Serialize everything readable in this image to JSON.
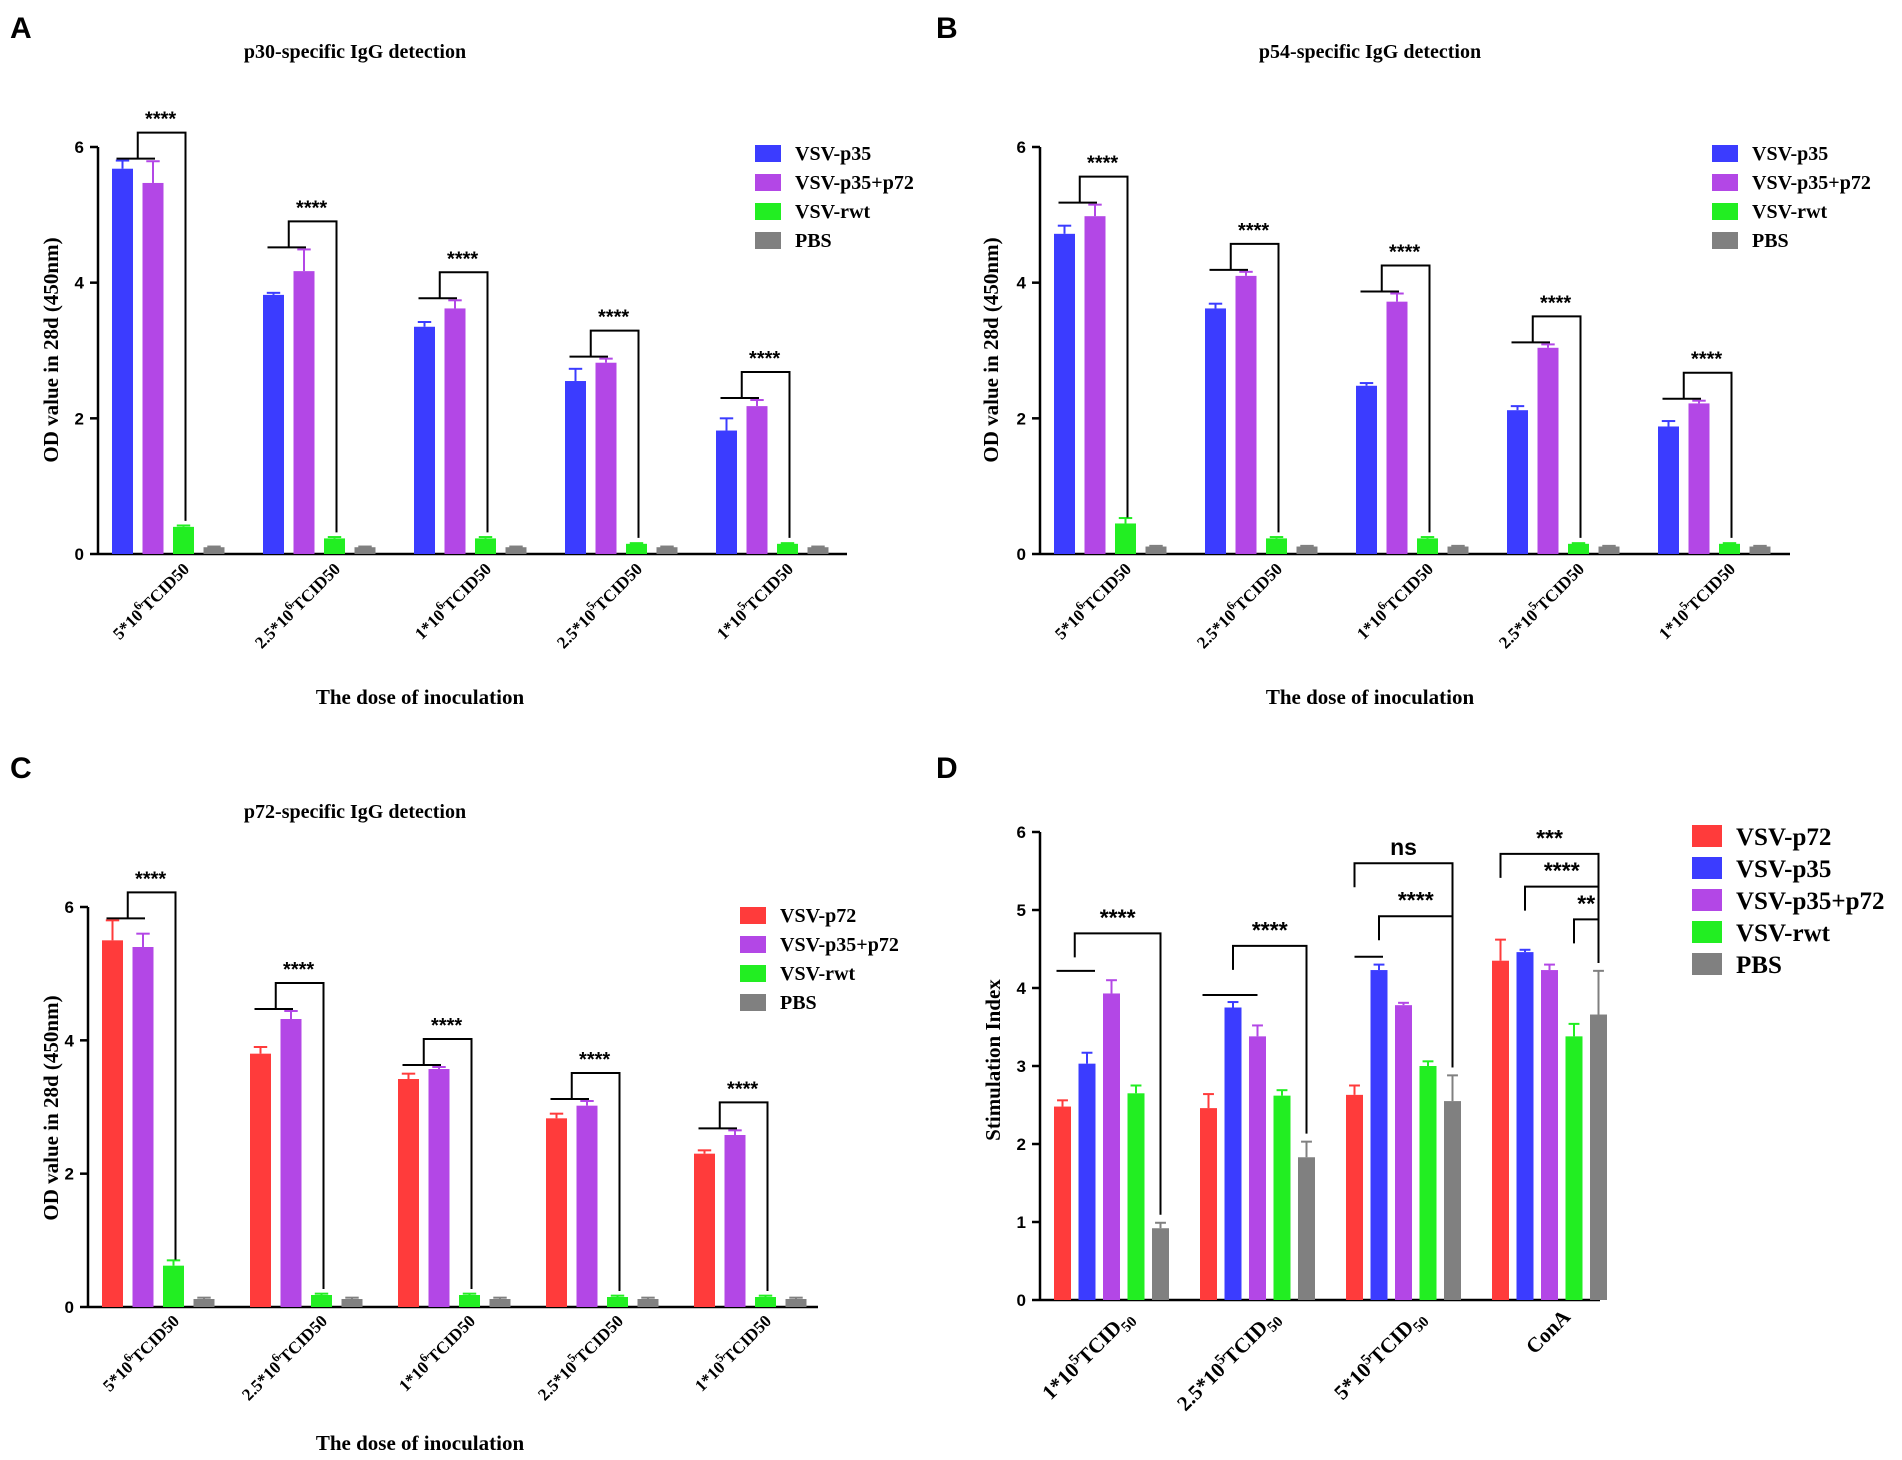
{
  "colors": {
    "VSV-p35": "#3b3cff",
    "VSV-p35+p72": "#b347e6",
    "VSV-rwt": "#22ee22",
    "PBS": "#808080",
    "VSV-p72": "#ff3b3b"
  },
  "chart_data": [
    {
      "letter": "A",
      "type": "bar",
      "title": "p30-specific IgG detection",
      "xlabel": "The dose of inoculation",
      "ylabel": "OD value in 28d (450nm)",
      "ylim": [
        0,
        6
      ],
      "yticks": [
        "0",
        "2",
        "4",
        "6"
      ],
      "legend_position": "top-right",
      "categories": [
        {
          "base": "5*10",
          "sup": "6",
          "rest": "TCID50"
        },
        {
          "base": "2.5*10",
          "sup": "6",
          "rest": "TCID50"
        },
        {
          "base": "1*10",
          "sup": "6",
          "rest": "TCID50"
        },
        {
          "base": "2.5*10",
          "sup": "5",
          "rest": "TCID50"
        },
        {
          "base": "1*10",
          "sup": "5",
          "rest": "TCID50"
        }
      ],
      "series": [
        {
          "name": "VSV-p35",
          "values": [
            5.68,
            3.82,
            3.35,
            2.55,
            1.82
          ],
          "errors": [
            0.12,
            0.03,
            0.07,
            0.18,
            0.18
          ]
        },
        {
          "name": "VSV-p35+p72",
          "values": [
            5.47,
            4.17,
            3.62,
            2.82,
            2.18
          ],
          "errors": [
            0.32,
            0.32,
            0.12,
            0.06,
            0.09
          ]
        },
        {
          "name": "VSV-rwt",
          "values": [
            0.4,
            0.23,
            0.23,
            0.15,
            0.15
          ],
          "errors": [
            0.02,
            0.02,
            0.02,
            0.01,
            0.01
          ]
        },
        {
          "name": "PBS",
          "values": [
            0.1,
            0.1,
            0.1,
            0.1,
            0.1
          ],
          "errors": [
            0.01,
            0.01,
            0.01,
            0.01,
            0.01
          ]
        }
      ],
      "significance": [
        {
          "category": 0,
          "label": "****"
        },
        {
          "category": 1,
          "label": "****"
        },
        {
          "category": 2,
          "label": "****"
        },
        {
          "category": 3,
          "label": "****"
        },
        {
          "category": 4,
          "label": "****"
        }
      ]
    },
    {
      "letter": "B",
      "type": "bar",
      "title": "p54-specific IgG detection",
      "xlabel": "The dose of inoculation",
      "ylabel": "OD value in 28d (450nm)",
      "ylim": [
        0,
        6
      ],
      "yticks": [
        "0",
        "2",
        "4",
        "6"
      ],
      "legend_position": "top-right",
      "categories": [
        {
          "base": "5*10",
          "sup": "6",
          "rest": "TCID50"
        },
        {
          "base": "2.5*10",
          "sup": "6",
          "rest": "TCID50"
        },
        {
          "base": "1*10",
          "sup": "6",
          "rest": "TCID50"
        },
        {
          "base": "2.5*10",
          "sup": "5",
          "rest": "TCID50"
        },
        {
          "base": "1*10",
          "sup": "5",
          "rest": "TCID50"
        }
      ],
      "series": [
        {
          "name": "VSV-p35",
          "values": [
            4.72,
            3.62,
            2.48,
            2.12,
            1.88
          ],
          "errors": [
            0.12,
            0.07,
            0.04,
            0.06,
            0.08
          ]
        },
        {
          "name": "VSV-p35+p72",
          "values": [
            4.98,
            4.1,
            3.72,
            3.04,
            2.22
          ],
          "errors": [
            0.17,
            0.06,
            0.12,
            0.05,
            0.04
          ]
        },
        {
          "name": "VSV-rwt",
          "values": [
            0.45,
            0.23,
            0.23,
            0.15,
            0.15
          ],
          "errors": [
            0.08,
            0.02,
            0.02,
            0.01,
            0.01
          ]
        },
        {
          "name": "PBS",
          "values": [
            0.11,
            0.11,
            0.11,
            0.11,
            0.11
          ],
          "errors": [
            0.01,
            0.01,
            0.01,
            0.01,
            0.01
          ]
        }
      ],
      "significance": [
        {
          "category": 0,
          "label": "****"
        },
        {
          "category": 1,
          "label": "****"
        },
        {
          "category": 2,
          "label": "****"
        },
        {
          "category": 3,
          "label": "****"
        },
        {
          "category": 4,
          "label": "****"
        }
      ]
    },
    {
      "letter": "C",
      "type": "bar",
      "title": "p72-specific IgG detection",
      "xlabel": "The dose of inoculation",
      "ylabel": "OD value in 28d (450nm)",
      "ylim": [
        0,
        6
      ],
      "yticks": [
        "0",
        "2",
        "4",
        "6"
      ],
      "legend_position": "top-right",
      "categories": [
        {
          "base": "5*10",
          "sup": "6",
          "rest": "TCID50"
        },
        {
          "base": "2.5*10",
          "sup": "6",
          "rest": "TCID50"
        },
        {
          "base": "1*10",
          "sup": "6",
          "rest": "TCID50"
        },
        {
          "base": "2.5*10",
          "sup": "5",
          "rest": "TCID50"
        },
        {
          "base": "1*10",
          "sup": "5",
          "rest": "TCID50"
        }
      ],
      "series": [
        {
          "name": "VSV-p72",
          "values": [
            5.5,
            3.8,
            3.42,
            2.83,
            2.3
          ],
          "errors": [
            0.3,
            0.1,
            0.08,
            0.07,
            0.05
          ]
        },
        {
          "name": "VSV-p35+p72",
          "values": [
            5.4,
            4.32,
            3.57,
            3.02,
            2.58
          ],
          "errors": [
            0.2,
            0.12,
            0.03,
            0.07,
            0.07
          ]
        },
        {
          "name": "VSV-rwt",
          "values": [
            0.62,
            0.18,
            0.18,
            0.15,
            0.15
          ],
          "errors": [
            0.08,
            0.02,
            0.02,
            0.02,
            0.02
          ]
        },
        {
          "name": "PBS",
          "values": [
            0.12,
            0.12,
            0.12,
            0.12,
            0.12
          ],
          "errors": [
            0.02,
            0.02,
            0.02,
            0.02,
            0.02
          ]
        }
      ],
      "significance": [
        {
          "category": 0,
          "label": "****"
        },
        {
          "category": 1,
          "label": "****"
        },
        {
          "category": 2,
          "label": "****"
        },
        {
          "category": 3,
          "label": "****"
        },
        {
          "category": 4,
          "label": "****"
        }
      ]
    },
    {
      "letter": "D",
      "type": "bar",
      "title": "",
      "xlabel": "",
      "ylabel": "Stimulation Index",
      "ylim": [
        0,
        6
      ],
      "yticks": [
        "0",
        "1",
        "2",
        "3",
        "4",
        "5",
        "6"
      ],
      "legend_position": "top-right",
      "categories": [
        {
          "base": "1*10",
          "sup": "5",
          "rest": "TCID",
          "sub": "50"
        },
        {
          "base": "2.5*10",
          "sup": "5",
          "rest": "TCID",
          "sub": "50"
        },
        {
          "base": "5*10",
          "sup": "5",
          "rest": "TCID",
          "sub": "50"
        },
        {
          "base": "ConA",
          "sup": "",
          "rest": ""
        }
      ],
      "series": [
        {
          "name": "VSV-p72",
          "values": [
            2.48,
            2.46,
            2.63,
            4.35
          ],
          "errors": [
            0.08,
            0.18,
            0.12,
            0.27
          ]
        },
        {
          "name": "VSV-p35",
          "values": [
            3.03,
            3.75,
            4.23,
            4.46
          ],
          "errors": [
            0.14,
            0.07,
            0.07,
            0.03
          ]
        },
        {
          "name": "VSV-p35+p72",
          "values": [
            3.93,
            3.38,
            3.78,
            4.23
          ],
          "errors": [
            0.17,
            0.14,
            0.03,
            0.07
          ]
        },
        {
          "name": "VSV-rwt",
          "values": [
            2.65,
            2.62,
            3.0,
            3.38
          ],
          "errors": [
            0.1,
            0.07,
            0.06,
            0.16
          ]
        },
        {
          "name": "PBS",
          "values": [
            0.92,
            1.83,
            2.55,
            3.66
          ],
          "errors": [
            0.07,
            0.2,
            0.33,
            0.56
          ]
        }
      ],
      "significance": [
        {
          "category": 0,
          "label": "****"
        },
        {
          "category": 1,
          "label": "****"
        },
        {
          "category": 2,
          "label": "ns"
        },
        {
          "category": 2,
          "label": "****"
        },
        {
          "category": 3,
          "label": "***"
        },
        {
          "category": 3,
          "label": "****"
        },
        {
          "category": 3,
          "label": "**"
        }
      ]
    }
  ]
}
